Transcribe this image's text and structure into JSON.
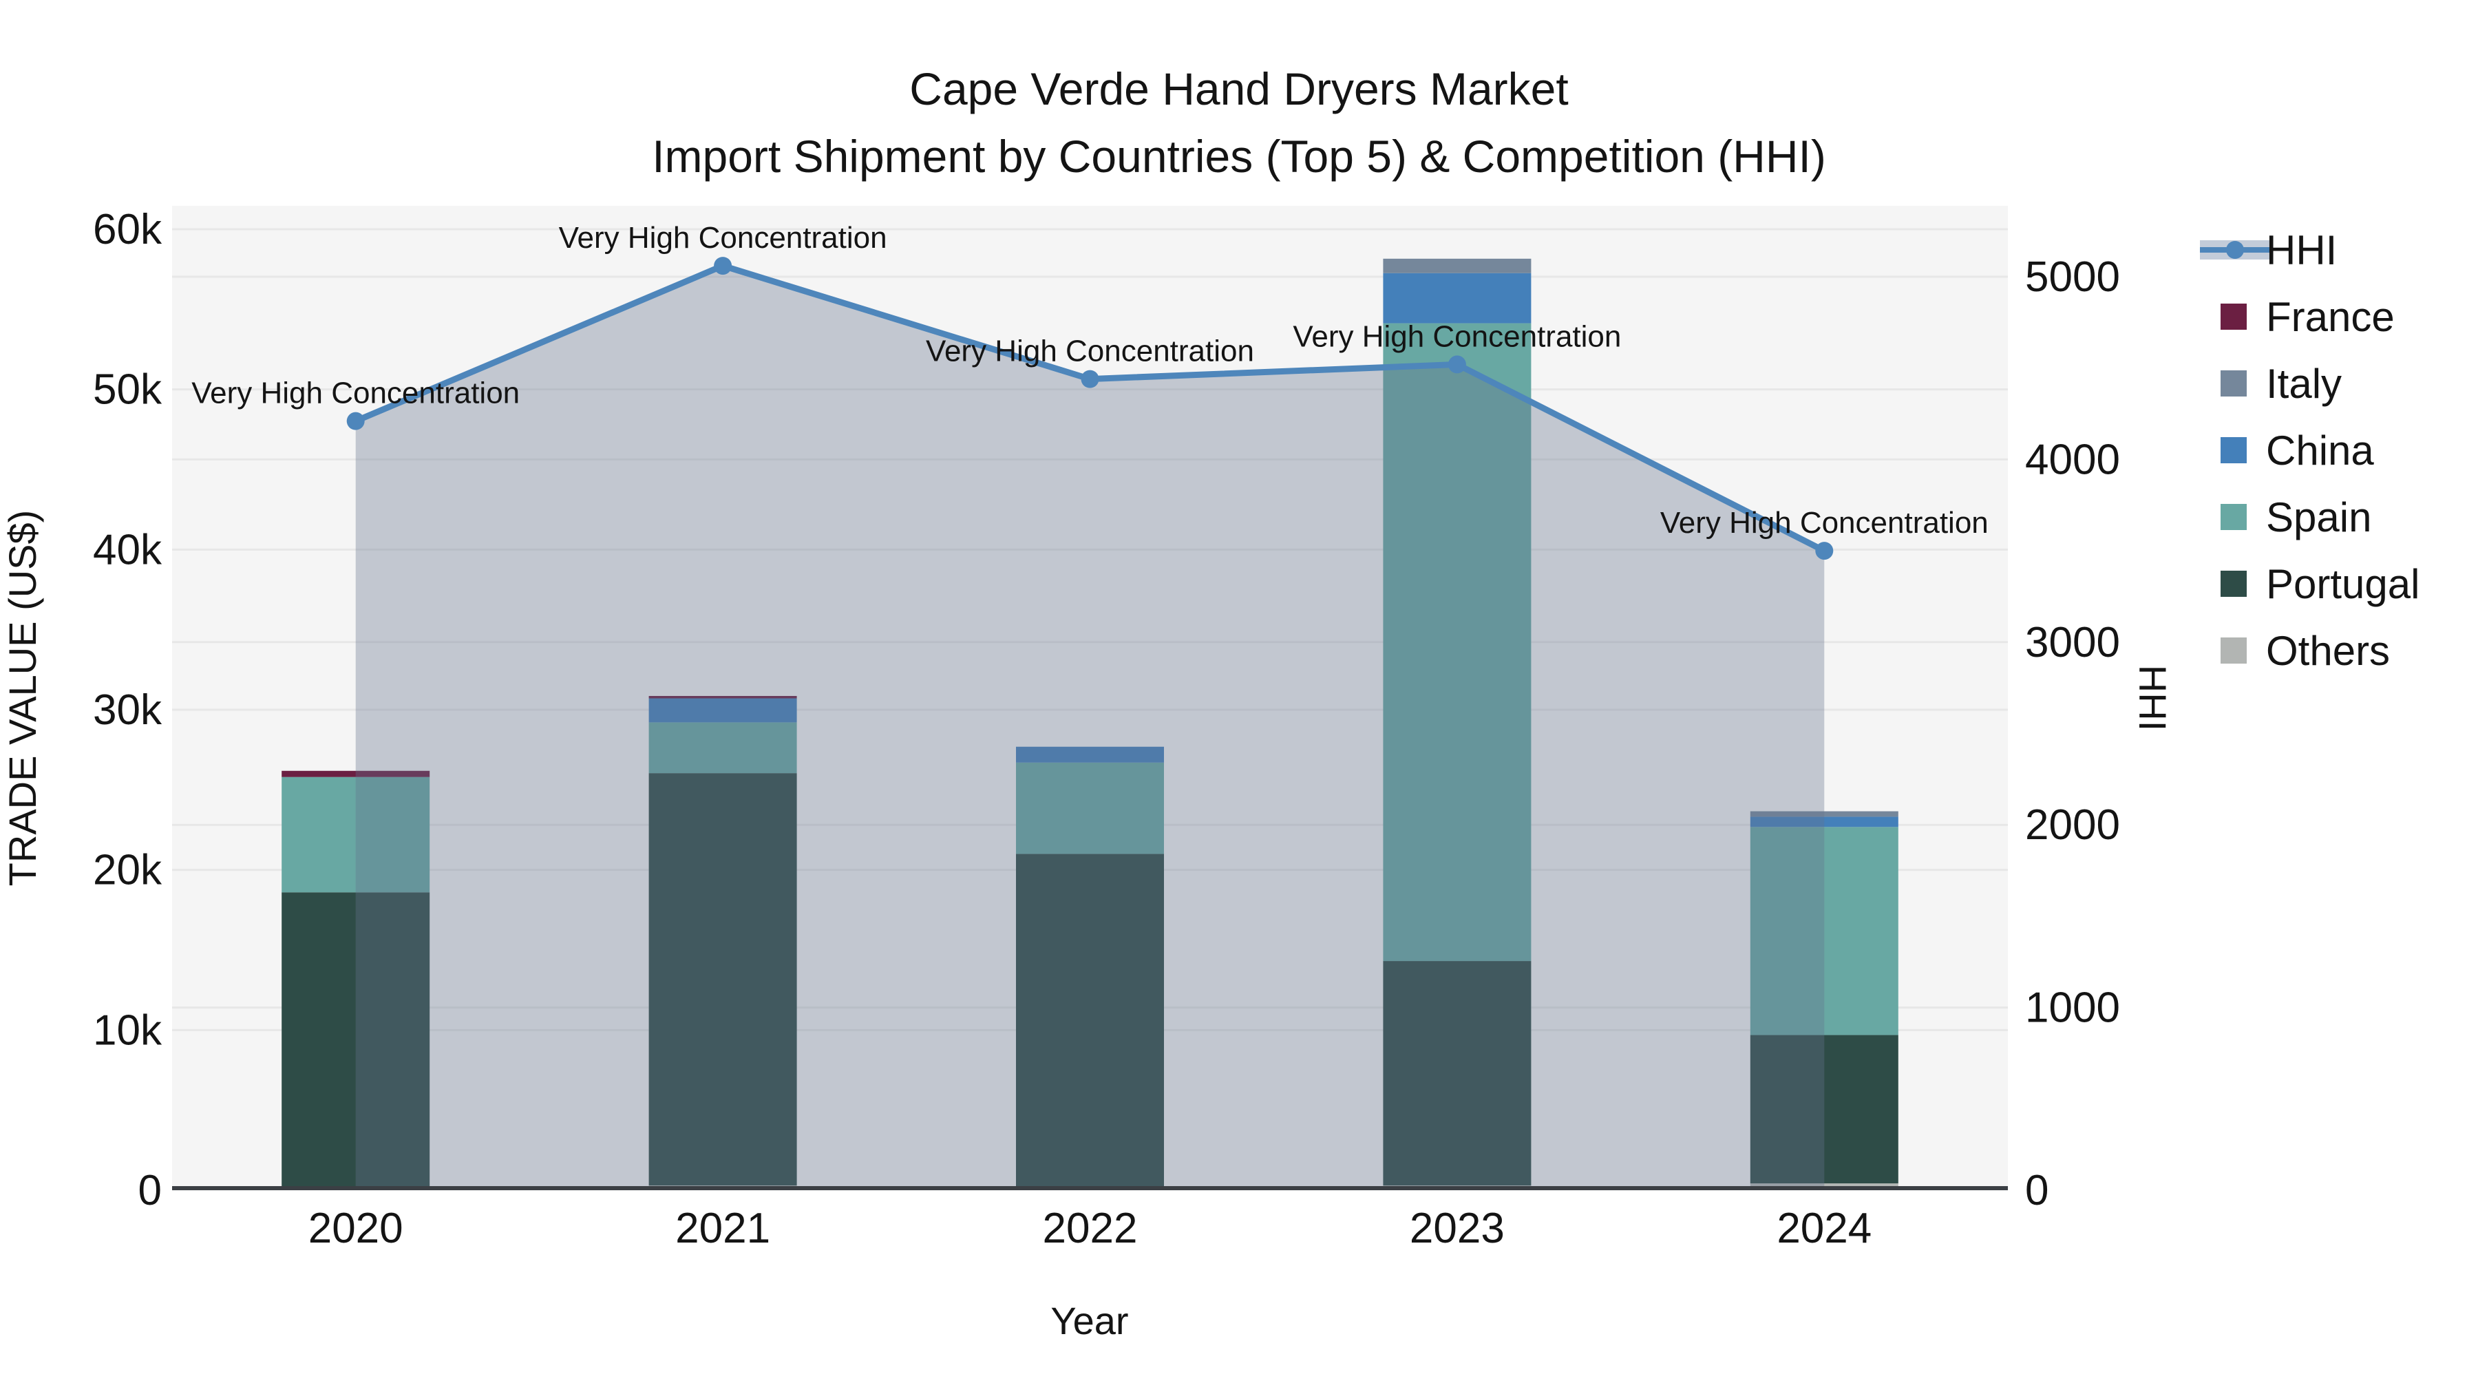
{
  "title": {
    "line1": "Cape Verde Hand Dryers Market",
    "line2": "Import Shipment by Countries (Top 5) & Competition (HHI)"
  },
  "axes": {
    "x": {
      "title": "Year",
      "categories": [
        "2020",
        "2021",
        "2022",
        "2023",
        "2024"
      ]
    },
    "y_left": {
      "title": "TRADE VALUE (US$)",
      "ticks": [
        {
          "label": "0",
          "value": 0
        },
        {
          "label": "10k",
          "value": 10000
        },
        {
          "label": "20k",
          "value": 20000
        },
        {
          "label": "30k",
          "value": 30000
        },
        {
          "label": "40k",
          "value": 40000
        },
        {
          "label": "50k",
          "value": 50000
        },
        {
          "label": "60k",
          "value": 60000
        }
      ]
    },
    "y_right": {
      "title": "HHI",
      "ticks": [
        {
          "label": "0",
          "value": 0
        },
        {
          "label": "1000",
          "value": 1000
        },
        {
          "label": "2000",
          "value": 2000
        },
        {
          "label": "3000",
          "value": 3000
        },
        {
          "label": "4000",
          "value": 4000
        },
        {
          "label": "5000",
          "value": 5000
        }
      ]
    }
  },
  "legend": {
    "items": [
      {
        "label": "HHI",
        "type": "line",
        "color": "#4e86bb"
      },
      {
        "label": "France",
        "type": "swatch",
        "color": "#6b1f42"
      },
      {
        "label": "Italy",
        "type": "swatch",
        "color": "#75879b"
      },
      {
        "label": "China",
        "type": "swatch",
        "color": "#4480ba"
      },
      {
        "label": "Spain",
        "type": "swatch",
        "color": "#68a8a3"
      },
      {
        "label": "Portugal",
        "type": "swatch",
        "color": "#2e4c47"
      },
      {
        "label": "Others",
        "type": "swatch",
        "color": "#b2b5b3"
      }
    ]
  },
  "chart_data": {
    "type": "bar+line",
    "categories": [
      "2020",
      "2021",
      "2022",
      "2023",
      "2024"
    ],
    "y_left_range": [
      0,
      60000
    ],
    "y_right_range": [
      0,
      5000
    ],
    "stack_order_bottom_to_top": [
      "Others",
      "Portugal",
      "Spain",
      "China",
      "Italy",
      "France"
    ],
    "series": [
      {
        "name": "France",
        "color": "#6b1f42",
        "values": [
          385,
          150,
          0,
          0,
          0
        ]
      },
      {
        "name": "Italy",
        "color": "#75879b",
        "values": [
          0,
          0,
          0,
          900,
          340
        ]
      },
      {
        "name": "China",
        "color": "#4480ba",
        "values": [
          0,
          1500,
          990,
          3130,
          640
        ]
      },
      {
        "name": "Spain",
        "color": "#68a8a3",
        "values": [
          7200,
          3170,
          5700,
          39820,
          12990
        ]
      },
      {
        "name": "Portugal",
        "color": "#2e4c47",
        "values": [
          18600,
          25740,
          20850,
          14010,
          9260
        ]
      },
      {
        "name": "Others",
        "color": "#b2b5b3",
        "values": [
          0,
          300,
          150,
          300,
          430
        ]
      }
    ],
    "bar_totals": [
      26185,
      30860,
      27690,
      58160,
      23660
    ],
    "line_series": {
      "name": "HHI",
      "axis": "right",
      "color": "#4e86bb",
      "area_color": "rgba(100,115,140,0.35)",
      "values": [
        4210,
        5060,
        4440,
        4520,
        3500
      ],
      "point_labels": [
        "Very High Concentration",
        "Very High Concentration",
        "Very High Concentration",
        "Very High Concentration",
        "Very High Concentration"
      ]
    }
  },
  "colors": {
    "plot_background": "#f5f5f5",
    "figure_background": "#ffffff",
    "gridline": "#e7e7e7",
    "axis_line": "#3b3f44",
    "text": "#141414",
    "hhi_line": "#4e86bb",
    "hhi_legend_band": "#c3ccd9"
  }
}
